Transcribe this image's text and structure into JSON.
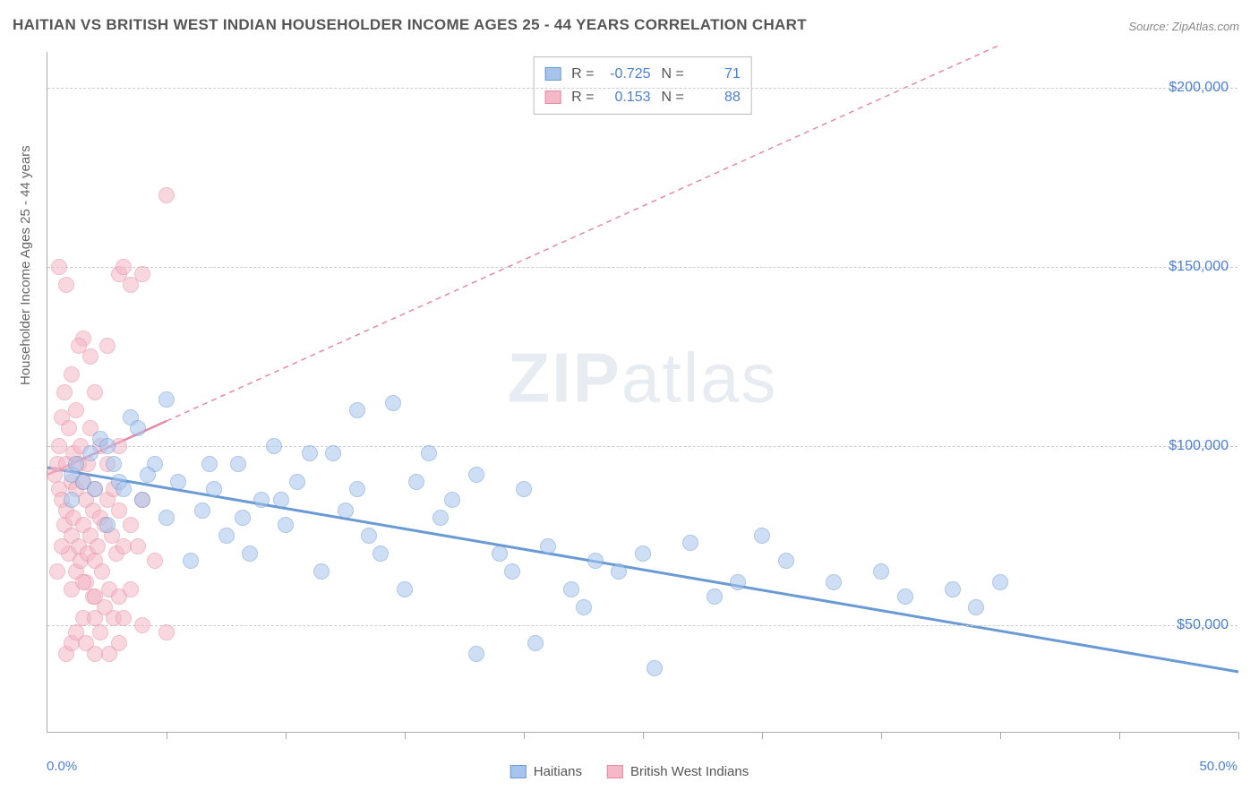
{
  "title": "HAITIAN VS BRITISH WEST INDIAN HOUSEHOLDER INCOME AGES 25 - 44 YEARS CORRELATION CHART",
  "source": "Source: ZipAtlas.com",
  "yaxis_label": "Householder Income Ages 25 - 44 years",
  "watermark": {
    "bold": "ZIP",
    "rest": "atlas"
  },
  "chart": {
    "type": "scatter",
    "xlim": [
      0,
      50
    ],
    "ylim": [
      20000,
      210000
    ],
    "xtick_positions": [
      0,
      5,
      10,
      15,
      20,
      25,
      30,
      35,
      40,
      45,
      50
    ],
    "xlabel_min": "0.0%",
    "xlabel_max": "50.0%",
    "ytick_labels": [
      "$50,000",
      "$100,000",
      "$150,000",
      "$200,000"
    ],
    "ytick_values": [
      50000,
      100000,
      150000,
      200000
    ],
    "grid_color": "#cccccc",
    "background_color": "#ffffff",
    "axis_color": "#aaaaaa",
    "tick_label_color": "#4a7fd8",
    "point_radius": 9,
    "point_opacity": 0.55,
    "series": [
      {
        "name": "Haitians",
        "fill": "#a7c4ed",
        "stroke": "#6a9ad4",
        "R": "-0.725",
        "N": "71",
        "points": [
          [
            1.0,
            92000
          ],
          [
            1.2,
            95000
          ],
          [
            1.5,
            90000
          ],
          [
            1.8,
            98000
          ],
          [
            2.0,
            88000
          ],
          [
            2.2,
            102000
          ],
          [
            2.5,
            100000
          ],
          [
            2.8,
            95000
          ],
          [
            3.0,
            90000
          ],
          [
            3.2,
            88000
          ],
          [
            3.5,
            108000
          ],
          [
            3.8,
            105000
          ],
          [
            4.0,
            85000
          ],
          [
            4.5,
            95000
          ],
          [
            5.0,
            80000
          ],
          [
            5.0,
            113000
          ],
          [
            5.5,
            90000
          ],
          [
            6.0,
            68000
          ],
          [
            6.5,
            82000
          ],
          [
            7.0,
            88000
          ],
          [
            7.5,
            75000
          ],
          [
            8.0,
            95000
          ],
          [
            8.5,
            70000
          ],
          [
            9.0,
            85000
          ],
          [
            9.5,
            100000
          ],
          [
            10.0,
            78000
          ],
          [
            10.5,
            90000
          ],
          [
            11.0,
            98000
          ],
          [
            11.5,
            65000
          ],
          [
            12.0,
            98000
          ],
          [
            12.5,
            82000
          ],
          [
            13.0,
            88000
          ],
          [
            13.0,
            110000
          ],
          [
            14.0,
            70000
          ],
          [
            14.5,
            112000
          ],
          [
            15.0,
            60000
          ],
          [
            15.5,
            90000
          ],
          [
            16.0,
            98000
          ],
          [
            17.0,
            85000
          ],
          [
            18.0,
            92000
          ],
          [
            18.0,
            42000
          ],
          [
            19.0,
            70000
          ],
          [
            19.5,
            65000
          ],
          [
            20.0,
            88000
          ],
          [
            20.5,
            45000
          ],
          [
            21.0,
            72000
          ],
          [
            22.0,
            60000
          ],
          [
            23.0,
            68000
          ],
          [
            24.0,
            65000
          ],
          [
            25.0,
            70000
          ],
          [
            25.5,
            38000
          ],
          [
            27.0,
            73000
          ],
          [
            29.0,
            62000
          ],
          [
            30.0,
            75000
          ],
          [
            31.0,
            68000
          ],
          [
            33.0,
            62000
          ],
          [
            35.0,
            65000
          ],
          [
            36.0,
            58000
          ],
          [
            38.0,
            60000
          ],
          [
            39.0,
            55000
          ],
          [
            40.0,
            62000
          ],
          [
            1.0,
            85000
          ],
          [
            2.5,
            78000
          ],
          [
            4.2,
            92000
          ],
          [
            6.8,
            95000
          ],
          [
            8.2,
            80000
          ],
          [
            9.8,
            85000
          ],
          [
            13.5,
            75000
          ],
          [
            16.5,
            80000
          ],
          [
            22.5,
            55000
          ],
          [
            28.0,
            58000
          ]
        ],
        "trendline": {
          "x1": 0,
          "y1": 94000,
          "x2": 50,
          "y2": 37000,
          "width": 3,
          "dash": "none"
        },
        "dashed_extension": null
      },
      {
        "name": "British West Indians",
        "fill": "#f4b8c6",
        "stroke": "#e68aa3",
        "R": "0.153",
        "N": "88",
        "points": [
          [
            0.3,
            92000
          ],
          [
            0.4,
            95000
          ],
          [
            0.5,
            88000
          ],
          [
            0.5,
            100000
          ],
          [
            0.6,
            85000
          ],
          [
            0.6,
            108000
          ],
          [
            0.7,
            78000
          ],
          [
            0.7,
            115000
          ],
          [
            0.8,
            82000
          ],
          [
            0.8,
            95000
          ],
          [
            0.9,
            70000
          ],
          [
            0.9,
            105000
          ],
          [
            1.0,
            75000
          ],
          [
            1.0,
            90000
          ],
          [
            1.0,
            120000
          ],
          [
            1.1,
            80000
          ],
          [
            1.1,
            98000
          ],
          [
            1.2,
            65000
          ],
          [
            1.2,
            88000
          ],
          [
            1.2,
            110000
          ],
          [
            1.3,
            72000
          ],
          [
            1.3,
            95000
          ],
          [
            1.4,
            68000
          ],
          [
            1.4,
            100000
          ],
          [
            1.5,
            78000
          ],
          [
            1.5,
            90000
          ],
          [
            1.5,
            130000
          ],
          [
            1.6,
            62000
          ],
          [
            1.6,
            85000
          ],
          [
            1.7,
            70000
          ],
          [
            1.7,
            95000
          ],
          [
            1.8,
            75000
          ],
          [
            1.8,
            105000
          ],
          [
            1.9,
            58000
          ],
          [
            1.9,
            82000
          ],
          [
            2.0,
            68000
          ],
          [
            2.0,
            88000
          ],
          [
            2.0,
            115000
          ],
          [
            2.1,
            72000
          ],
          [
            2.2,
            80000
          ],
          [
            2.2,
            100000
          ],
          [
            2.3,
            65000
          ],
          [
            2.4,
            78000
          ],
          [
            2.5,
            85000
          ],
          [
            2.5,
            95000
          ],
          [
            2.6,
            60000
          ],
          [
            2.7,
            75000
          ],
          [
            2.8,
            88000
          ],
          [
            2.9,
            70000
          ],
          [
            3.0,
            82000
          ],
          [
            3.0,
            100000
          ],
          [
            3.0,
            148000
          ],
          [
            3.2,
            72000
          ],
          [
            3.2,
            150000
          ],
          [
            3.5,
            78000
          ],
          [
            3.5,
            145000
          ],
          [
            3.8,
            72000
          ],
          [
            4.0,
            85000
          ],
          [
            4.0,
            148000
          ],
          [
            4.5,
            68000
          ],
          [
            5.0,
            48000
          ],
          [
            5.0,
            170000
          ],
          [
            0.5,
            150000
          ],
          [
            0.8,
            42000
          ],
          [
            0.8,
            145000
          ],
          [
            1.0,
            45000
          ],
          [
            1.2,
            48000
          ],
          [
            1.3,
            128000
          ],
          [
            1.5,
            52000
          ],
          [
            1.6,
            45000
          ],
          [
            1.8,
            125000
          ],
          [
            2.0,
            42000
          ],
          [
            2.0,
            52000
          ],
          [
            2.2,
            48000
          ],
          [
            2.4,
            55000
          ],
          [
            2.5,
            128000
          ],
          [
            2.6,
            42000
          ],
          [
            2.8,
            52000
          ],
          [
            3.0,
            45000
          ],
          [
            3.0,
            58000
          ],
          [
            3.2,
            52000
          ],
          [
            3.5,
            60000
          ],
          [
            4.0,
            50000
          ],
          [
            0.4,
            65000
          ],
          [
            0.6,
            72000
          ],
          [
            1.0,
            60000
          ],
          [
            1.5,
            62000
          ],
          [
            2.0,
            58000
          ]
        ],
        "trendline": {
          "x1": 0,
          "y1": 92000,
          "x2": 5,
          "y2": 107000,
          "width": 2.5,
          "dash": "none"
        },
        "dashed_extension": {
          "x1": 5,
          "y1": 107000,
          "x2": 40,
          "y2": 212000,
          "width": 1.5,
          "dash": "6,5"
        }
      }
    ],
    "legend_stats": {
      "R_label": "R =",
      "N_label": "N ="
    },
    "bottom_legend": {
      "label1": "Haitians",
      "label2": "British West Indians"
    }
  }
}
